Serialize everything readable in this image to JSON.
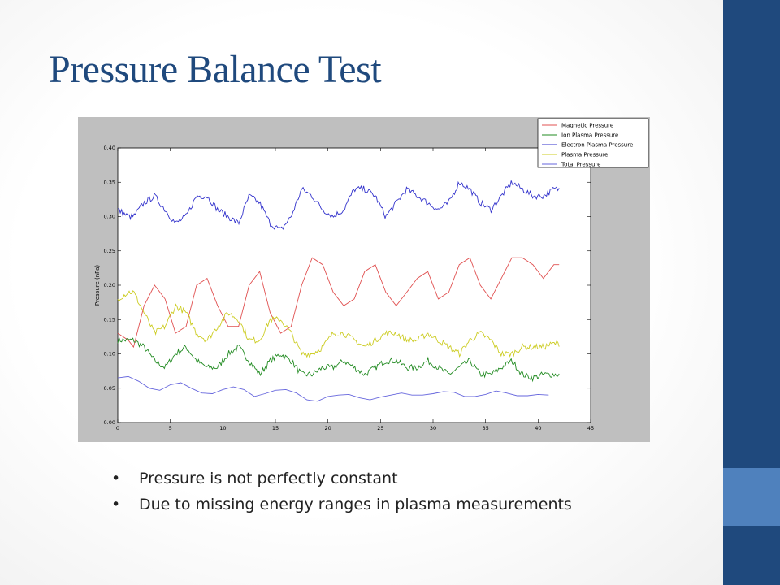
{
  "slide": {
    "title": "Pressure Balance Test",
    "bullet_glyph": "•",
    "bullets": [
      "Pressure is not perfectly constant",
      "Due to missing energy ranges in plasma measurements"
    ],
    "colors": {
      "title": "#1f497d",
      "sidebar": "#1f497d",
      "sidebar_accent": "#4f81bd",
      "figure_bg": "#bfbfbf"
    }
  },
  "chart_data": {
    "type": "line",
    "title": "",
    "xlabel": "",
    "ylabel": "Pressure (nPa)",
    "xlim": [
      0,
      45
    ],
    "ylim": [
      0.0,
      0.4
    ],
    "xticks": [
      0,
      5,
      10,
      15,
      20,
      25,
      30,
      35,
      40,
      45
    ],
    "yticks": [
      "0.00",
      "0.05",
      "0.10",
      "0.15",
      "0.20",
      "0.25",
      "0.30",
      "0.35",
      "0.40"
    ],
    "grid": false,
    "legend_position": "top-right",
    "series": [
      {
        "name": "Magnetic Pressure",
        "color": "#e05050",
        "noisy": false,
        "x": [
          0,
          1,
          1.5,
          2.5,
          3.5,
          4.5,
          5.5,
          6.5,
          7.5,
          8.5,
          9.5,
          10.5,
          11.5,
          12.5,
          13.5,
          14.5,
          15.5,
          16.5,
          17.5,
          18.5,
          19.5,
          20.5,
          21.5,
          22.5,
          23.5,
          24.5,
          25.5,
          26.5,
          27.5,
          28.5,
          29.5,
          30.5,
          31.5,
          32.5,
          33.5,
          34.5,
          35.5,
          36.5,
          37.5,
          38.5,
          39.5,
          40.5,
          41.5,
          42
        ],
        "y": [
          0.13,
          0.12,
          0.11,
          0.17,
          0.2,
          0.18,
          0.13,
          0.14,
          0.2,
          0.21,
          0.17,
          0.14,
          0.14,
          0.2,
          0.22,
          0.16,
          0.13,
          0.14,
          0.2,
          0.24,
          0.23,
          0.19,
          0.17,
          0.18,
          0.22,
          0.23,
          0.19,
          0.17,
          0.19,
          0.21,
          0.22,
          0.18,
          0.19,
          0.23,
          0.24,
          0.2,
          0.18,
          0.21,
          0.24,
          0.24,
          0.23,
          0.21,
          0.23,
          0.23
        ]
      },
      {
        "name": "Ion Plasma Pressure",
        "color": "#228b22",
        "noisy": true,
        "x": [
          0,
          1,
          1.5,
          2.5,
          3.5,
          4.5,
          5.5,
          6.5,
          7.5,
          8.5,
          9.5,
          10.5,
          11.5,
          12.5,
          13.5,
          14.5,
          15.5,
          16.5,
          17.5,
          18.5,
          19.5,
          20.5,
          21.5,
          22.5,
          23.5,
          24.5,
          25.5,
          26.5,
          27.5,
          28.5,
          29.5,
          30.5,
          31.5,
          32.5,
          33.5,
          34.5,
          35.5,
          36.5,
          37.5,
          38.5,
          39.5,
          40.5,
          41.5,
          42
        ],
        "y": [
          0.12,
          0.12,
          0.12,
          0.11,
          0.09,
          0.08,
          0.1,
          0.11,
          0.09,
          0.08,
          0.08,
          0.1,
          0.11,
          0.09,
          0.07,
          0.09,
          0.1,
          0.09,
          0.07,
          0.07,
          0.08,
          0.08,
          0.09,
          0.08,
          0.07,
          0.08,
          0.09,
          0.09,
          0.08,
          0.08,
          0.09,
          0.08,
          0.07,
          0.08,
          0.09,
          0.07,
          0.07,
          0.08,
          0.09,
          0.07,
          0.065,
          0.07,
          0.07,
          0.07
        ]
      },
      {
        "name": "Electron Plasma Pressure",
        "color": "#3333cc",
        "noisy": true,
        "x": [
          0,
          1,
          1.5,
          2.5,
          3.5,
          4.5,
          5.5,
          6.5,
          7.5,
          8.5,
          9.5,
          10.5,
          11.5,
          12.5,
          13.5,
          14.5,
          15.5,
          16.5,
          17.5,
          18.5,
          19.5,
          20.5,
          21.5,
          22.5,
          23.5,
          24.5,
          25.5,
          26.5,
          27.5,
          28.5,
          29.5,
          30.5,
          31.5,
          32.5,
          33.5,
          34.5,
          35.5,
          36.5,
          37.5,
          38.5,
          39.5,
          40.5,
          41.5,
          42
        ],
        "y": [
          0.31,
          0.3,
          0.3,
          0.32,
          0.33,
          0.31,
          0.29,
          0.3,
          0.33,
          0.33,
          0.31,
          0.3,
          0.29,
          0.33,
          0.32,
          0.29,
          0.28,
          0.3,
          0.34,
          0.33,
          0.31,
          0.3,
          0.31,
          0.34,
          0.34,
          0.33,
          0.3,
          0.32,
          0.34,
          0.33,
          0.32,
          0.31,
          0.32,
          0.35,
          0.34,
          0.32,
          0.31,
          0.33,
          0.35,
          0.34,
          0.33,
          0.33,
          0.34,
          0.34
        ]
      },
      {
        "name": "Plasma Pressure",
        "color": "#cccc22",
        "noisy": true,
        "x": [
          0,
          1,
          1.5,
          2.5,
          3.5,
          4.5,
          5.5,
          6.5,
          7.5,
          8.5,
          9.5,
          10.5,
          11.5,
          12.5,
          13.5,
          14.5,
          15.5,
          16.5,
          17.5,
          18.5,
          19.5,
          20.5,
          21.5,
          22.5,
          23.5,
          24.5,
          25.5,
          26.5,
          27.5,
          28.5,
          29.5,
          30.5,
          31.5,
          32.5,
          33.5,
          34.5,
          35.5,
          36.5,
          37.5,
          38.5,
          39.5,
          40.5,
          41.5,
          42
        ],
        "y": [
          0.18,
          0.19,
          0.19,
          0.16,
          0.13,
          0.14,
          0.17,
          0.16,
          0.13,
          0.12,
          0.14,
          0.16,
          0.15,
          0.12,
          0.12,
          0.15,
          0.15,
          0.13,
          0.1,
          0.1,
          0.11,
          0.13,
          0.13,
          0.12,
          0.11,
          0.12,
          0.13,
          0.13,
          0.12,
          0.12,
          0.13,
          0.12,
          0.11,
          0.1,
          0.12,
          0.13,
          0.12,
          0.1,
          0.1,
          0.11,
          0.11,
          0.11,
          0.115,
          0.115
        ]
      },
      {
        "name": "Total Pressure",
        "color": "#6666dd",
        "noisy": false,
        "x": [
          0,
          1,
          2,
          3,
          4,
          5,
          6,
          7,
          8,
          9,
          10,
          11,
          12,
          13,
          14,
          15,
          16,
          17,
          18,
          19,
          20,
          21,
          22,
          23,
          24,
          25,
          26,
          27,
          28,
          29,
          30,
          31,
          32,
          33,
          34,
          35,
          36,
          37,
          38,
          39,
          40,
          41
        ],
        "y": [
          0.065,
          0.067,
          0.06,
          0.05,
          0.047,
          0.055,
          0.058,
          0.05,
          0.043,
          0.042,
          0.048,
          0.052,
          0.048,
          0.038,
          0.042,
          0.047,
          0.048,
          0.043,
          0.033,
          0.031,
          0.038,
          0.04,
          0.041,
          0.036,
          0.033,
          0.037,
          0.04,
          0.043,
          0.04,
          0.04,
          0.042,
          0.045,
          0.044,
          0.038,
          0.038,
          0.041,
          0.046,
          0.043,
          0.039,
          0.039,
          0.041,
          0.04
        ]
      }
    ]
  }
}
